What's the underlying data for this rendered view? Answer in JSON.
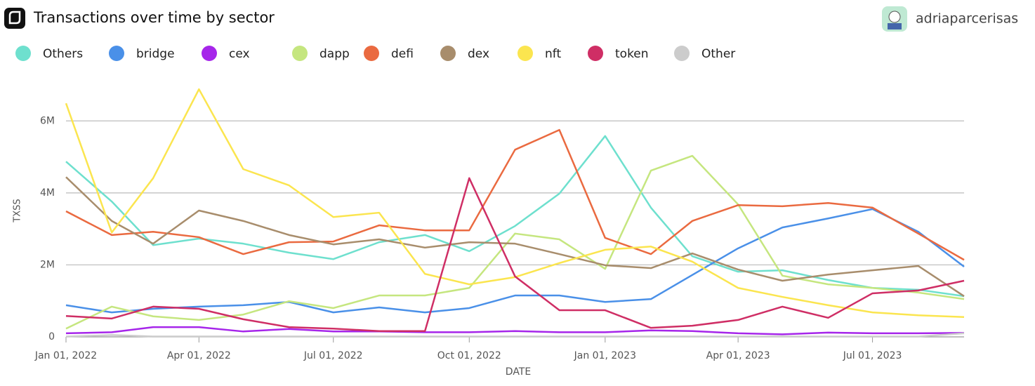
{
  "header": {
    "author": "adriaparcerisas"
  },
  "chart_data": {
    "type": "line",
    "title": "Transactions over time by sector",
    "x_label": "DATE",
    "y_label": "TXSS",
    "x": [
      "2022-01-01",
      "2022-02-01",
      "2022-03-01",
      "2022-04-01",
      "2022-05-01",
      "2022-06-01",
      "2022-07-01",
      "2022-08-01",
      "2022-09-01",
      "2022-10-01",
      "2022-11-01",
      "2022-12-01",
      "2023-01-01",
      "2023-02-01",
      "2023-03-01",
      "2023-04-01",
      "2023-05-01",
      "2023-06-01",
      "2023-07-01",
      "2023-08-01",
      "2023-09-01"
    ],
    "xlim": [
      "2022-01-01",
      "2023-09-01"
    ],
    "xticks": [
      {
        "value": "2022-01-01",
        "label": "Jan 01, 2022"
      },
      {
        "value": "2022-04-01",
        "label": "Apr 01, 2022"
      },
      {
        "value": "2022-07-01",
        "label": "Jul 01, 2022"
      },
      {
        "value": "2022-10-01",
        "label": "Oct 01, 2022"
      },
      {
        "value": "2023-01-01",
        "label": "Jan 01, 2023"
      },
      {
        "value": "2023-04-01",
        "label": "Apr 01, 2023"
      },
      {
        "value": "2023-07-01",
        "label": "Jul 01, 2023"
      }
    ],
    "ylim": [
      0,
      7000000
    ],
    "yticks": [
      0,
      {
        "value": 2000000,
        "label": "2M"
      },
      {
        "value": 4000000,
        "label": "4M"
      },
      {
        "value": 6000000,
        "label": "6M"
      }
    ],
    "grid": true,
    "series": [
      {
        "name": "Others",
        "color": "#6ee0ce",
        "values": [
          4870000,
          3760000,
          2550000,
          2730000,
          2590000,
          2340000,
          2160000,
          2630000,
          2830000,
          2380000,
          3080000,
          3980000,
          5580000,
          3590000,
          2240000,
          1810000,
          1850000,
          1580000,
          1360000,
          1310000,
          1130000
        ]
      },
      {
        "name": "bridge",
        "color": "#4a90e8",
        "values": [
          880000,
          680000,
          780000,
          840000,
          880000,
          970000,
          680000,
          820000,
          680000,
          800000,
          1150000,
          1150000,
          970000,
          1050000,
          1720000,
          2460000,
          3040000,
          3290000,
          3550000,
          2920000,
          1950000
        ]
      },
      {
        "name": "cex",
        "color": "#a626ea",
        "values": [
          100000,
          130000,
          270000,
          270000,
          150000,
          220000,
          150000,
          150000,
          130000,
          130000,
          160000,
          130000,
          130000,
          180000,
          160000,
          100000,
          70000,
          120000,
          100000,
          100000,
          110000
        ]
      },
      {
        "name": "dapp",
        "color": "#c5e67f",
        "values": [
          230000,
          840000,
          570000,
          470000,
          620000,
          990000,
          800000,
          1150000,
          1150000,
          1360000,
          2870000,
          2710000,
          1890000,
          4620000,
          5030000,
          3680000,
          1700000,
          1460000,
          1360000,
          1230000,
          1050000
        ]
      },
      {
        "name": "defi",
        "color": "#ea6a40",
        "values": [
          3490000,
          2830000,
          2920000,
          2770000,
          2300000,
          2630000,
          2650000,
          3100000,
          2960000,
          2960000,
          5200000,
          5750000,
          2750000,
          2300000,
          3220000,
          3660000,
          3630000,
          3720000,
          3590000,
          2870000,
          2140000
        ]
      },
      {
        "name": "dex",
        "color": "#a88d6c",
        "values": [
          4440000,
          3220000,
          2590000,
          3510000,
          3220000,
          2830000,
          2570000,
          2710000,
          2480000,
          2630000,
          2590000,
          2300000,
          1990000,
          1910000,
          2320000,
          1870000,
          1560000,
          1730000,
          1850000,
          1970000,
          1130000
        ]
      },
      {
        "name": "nft",
        "color": "#fbe54f",
        "values": [
          6490000,
          2900000,
          4410000,
          6880000,
          4660000,
          4210000,
          3330000,
          3450000,
          1750000,
          1460000,
          1660000,
          2050000,
          2420000,
          2510000,
          2090000,
          1360000,
          1110000,
          880000,
          680000,
          600000,
          550000
        ]
      },
      {
        "name": "token",
        "color": "#cf2e65",
        "values": [
          580000,
          510000,
          840000,
          780000,
          490000,
          270000,
          230000,
          160000,
          160000,
          4410000,
          1680000,
          740000,
          740000,
          250000,
          310000,
          470000,
          840000,
          530000,
          1210000,
          1290000,
          1560000
        ]
      },
      {
        "name": "Other",
        "color": "#cccccc",
        "values": [
          10000,
          50000,
          10000,
          10000,
          10000,
          10000,
          10000,
          10000,
          10000,
          10000,
          10000,
          10000,
          10000,
          10000,
          10000,
          10000,
          10000,
          10000,
          10000,
          10000,
          100000
        ]
      }
    ]
  }
}
